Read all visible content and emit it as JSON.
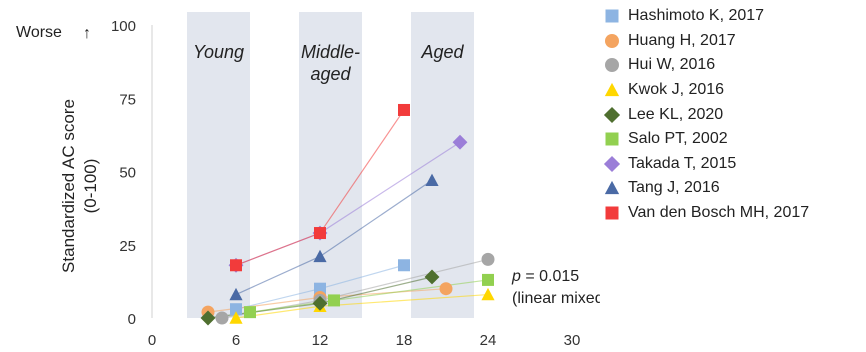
{
  "chart_data": {
    "type": "scatter",
    "ylabel_lines": [
      "Standardized AC score",
      "(0-100)"
    ],
    "worse_label": "Worse",
    "worse_arrow": "↑",
    "xlim": [
      0,
      30
    ],
    "ylim": [
      0,
      100
    ],
    "x_ticks": [
      "0",
      "6",
      "12",
      "18",
      "24",
      "30"
    ],
    "y_ticks": [
      "0",
      "25",
      "50",
      "75",
      "100"
    ],
    "bands": [
      {
        "label_lines": [
          "Young"
        ],
        "x_range": [
          2.5,
          7
        ]
      },
      {
        "label_lines": [
          "Middle-",
          "aged"
        ],
        "x_range": [
          10.5,
          15
        ]
      },
      {
        "label_lines": [
          "Aged"
        ],
        "x_range": [
          18.5,
          23
        ]
      }
    ],
    "annotation": {
      "italic": "p",
      "rest": " = 0.015",
      "line2": "(linear mixed effect model)"
    },
    "series": [
      {
        "name": "Hashimoto K, 2017",
        "marker": "square",
        "color": "#8db4e2",
        "x": [
          6,
          12,
          18
        ],
        "y": [
          3,
          10,
          18
        ]
      },
      {
        "name": "Huang H, 2017",
        "marker": "circle",
        "color": "#f4a460",
        "x": [
          4,
          12,
          21
        ],
        "y": [
          2,
          7,
          10
        ]
      },
      {
        "name": "Hui W, 2016",
        "marker": "circle",
        "color": "#a6a6a6",
        "x": [
          5,
          12,
          24
        ],
        "y": [
          0,
          6,
          20
        ]
      },
      {
        "name": "Kwok J, 2016",
        "marker": "triangle",
        "color": "#ffd700",
        "x": [
          6,
          12,
          24
        ],
        "y": [
          0,
          4,
          8
        ]
      },
      {
        "name": "Lee KL, 2020",
        "marker": "diamond",
        "color": "#4f6f2f",
        "x": [
          4,
          12,
          20
        ],
        "y": [
          0,
          5,
          14
        ]
      },
      {
        "name": "Salo PT, 2002",
        "marker": "square",
        "color": "#92d050",
        "x": [
          7,
          13,
          24
        ],
        "y": [
          2,
          6,
          13
        ]
      },
      {
        "name": "Takada T, 2015",
        "marker": "diamond",
        "color": "#9b7ed8",
        "x": [
          6,
          12,
          22
        ],
        "y": [
          18,
          29,
          60
        ]
      },
      {
        "name": "Tang J, 2016",
        "marker": "triangle",
        "color": "#4a6aa5",
        "x": [
          6,
          12,
          20
        ],
        "y": [
          8,
          21,
          47
        ]
      },
      {
        "name": "Van den Bosch MH, 2017",
        "marker": "square",
        "color": "#f23b3b",
        "x": [
          6,
          12,
          18
        ],
        "y": [
          18,
          29,
          71
        ]
      }
    ]
  }
}
